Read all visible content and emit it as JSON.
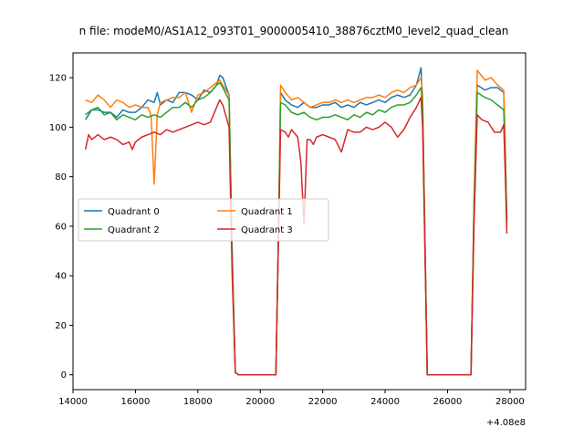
{
  "chart_data": {
    "type": "line",
    "title": "n file: modeM0/AS1A12_093T01_9000005410_38876cztM0_level2_quad_clean",
    "xlabel": "",
    "ylabel": "",
    "x_offset_label": "+4.08e8",
    "xlim": [
      14000,
      28500
    ],
    "ylim": [
      -6,
      130
    ],
    "x_ticks": [
      14000,
      16000,
      18000,
      20000,
      22000,
      24000,
      26000,
      28000
    ],
    "x_tick_labels": [
      "14000",
      "16000",
      "18000",
      "20000",
      "22000",
      "24000",
      "26000",
      "28000"
    ],
    "y_ticks": [
      0,
      20,
      40,
      60,
      80,
      100,
      120
    ],
    "y_tick_labels": [
      "0",
      "20",
      "40",
      "60",
      "80",
      "100",
      "120"
    ],
    "grid": false,
    "legend": {
      "placement": "center-left",
      "columns": 2
    },
    "series": [
      {
        "name": "Quadrant 0",
        "color": "#1f77b4",
        "points": [
          [
            14400,
            103
          ],
          [
            14600,
            107
          ],
          [
            14800,
            107
          ],
          [
            15000,
            106
          ],
          [
            15200,
            106
          ],
          [
            15400,
            104
          ],
          [
            15600,
            107
          ],
          [
            15800,
            106
          ],
          [
            16000,
            106
          ],
          [
            16200,
            108
          ],
          [
            16400,
            111
          ],
          [
            16600,
            110
          ],
          [
            16700,
            114
          ],
          [
            16800,
            109
          ],
          [
            17000,
            111
          ],
          [
            17200,
            110
          ],
          [
            17400,
            114
          ],
          [
            17600,
            114
          ],
          [
            17800,
            113
          ],
          [
            18000,
            111
          ],
          [
            18200,
            115
          ],
          [
            18400,
            114
          ],
          [
            18600,
            117
          ],
          [
            18700,
            121
          ],
          [
            18800,
            120
          ],
          [
            19000,
            113
          ],
          [
            19100,
            50
          ],
          [
            19200,
            1
          ],
          [
            19300,
            0
          ],
          [
            19600,
            0
          ],
          [
            20000,
            0
          ],
          [
            20400,
            0
          ],
          [
            20500,
            0
          ],
          [
            20600,
            70
          ],
          [
            20650,
            114
          ],
          [
            20800,
            111
          ],
          [
            21000,
            109
          ],
          [
            21200,
            108
          ],
          [
            21400,
            110
          ],
          [
            21600,
            108
          ],
          [
            21800,
            108
          ],
          [
            22000,
            109
          ],
          [
            22200,
            109
          ],
          [
            22400,
            110
          ],
          [
            22600,
            108
          ],
          [
            22800,
            109
          ],
          [
            23000,
            108
          ],
          [
            23200,
            110
          ],
          [
            23400,
            109
          ],
          [
            23600,
            110
          ],
          [
            23800,
            111
          ],
          [
            24000,
            110
          ],
          [
            24200,
            112
          ],
          [
            24400,
            113
          ],
          [
            24600,
            112
          ],
          [
            24800,
            113
          ],
          [
            25000,
            117
          ],
          [
            25150,
            124
          ],
          [
            25200,
            110
          ],
          [
            25350,
            0
          ],
          [
            25600,
            0
          ],
          [
            26000,
            0
          ],
          [
            26400,
            0
          ],
          [
            26750,
            0
          ],
          [
            26850,
            70
          ],
          [
            26950,
            117
          ],
          [
            27200,
            115
          ],
          [
            27400,
            116
          ],
          [
            27600,
            116
          ],
          [
            27800,
            114
          ],
          [
            27850,
            90
          ],
          [
            27900,
            62
          ]
        ]
      },
      {
        "name": "Quadrant 1",
        "color": "#ff7f0e",
        "points": [
          [
            14400,
            111
          ],
          [
            14600,
            110
          ],
          [
            14800,
            113
          ],
          [
            15000,
            111
          ],
          [
            15200,
            108
          ],
          [
            15400,
            111
          ],
          [
            15600,
            110
          ],
          [
            15800,
            108
          ],
          [
            16000,
            109
          ],
          [
            16200,
            108
          ],
          [
            16400,
            108
          ],
          [
            16500,
            105
          ],
          [
            16600,
            77
          ],
          [
            16700,
            105
          ],
          [
            16800,
            110
          ],
          [
            17000,
            111
          ],
          [
            17200,
            112
          ],
          [
            17400,
            112
          ],
          [
            17600,
            114
          ],
          [
            17800,
            106
          ],
          [
            18000,
            113
          ],
          [
            18200,
            114
          ],
          [
            18400,
            116
          ],
          [
            18600,
            118
          ],
          [
            18700,
            119
          ],
          [
            18800,
            117
          ],
          [
            19000,
            113
          ],
          [
            19100,
            48
          ],
          [
            19200,
            1
          ],
          [
            19300,
            0
          ],
          [
            19600,
            0
          ],
          [
            20000,
            0
          ],
          [
            20400,
            0
          ],
          [
            20500,
            0
          ],
          [
            20600,
            72
          ],
          [
            20650,
            117
          ],
          [
            20800,
            114
          ],
          [
            21000,
            111
          ],
          [
            21200,
            112
          ],
          [
            21400,
            110
          ],
          [
            21600,
            108
          ],
          [
            21800,
            109
          ],
          [
            22000,
            110
          ],
          [
            22200,
            110
          ],
          [
            22400,
            111
          ],
          [
            22600,
            110
          ],
          [
            22800,
            111
          ],
          [
            23000,
            110
          ],
          [
            23200,
            111
          ],
          [
            23400,
            112
          ],
          [
            23600,
            112
          ],
          [
            23800,
            113
          ],
          [
            24000,
            112
          ],
          [
            24200,
            114
          ],
          [
            24400,
            115
          ],
          [
            24600,
            114
          ],
          [
            24800,
            116
          ],
          [
            25000,
            117
          ],
          [
            25150,
            120
          ],
          [
            25200,
            113
          ],
          [
            25350,
            0
          ],
          [
            25600,
            0
          ],
          [
            26000,
            0
          ],
          [
            26400,
            0
          ],
          [
            26750,
            0
          ],
          [
            26850,
            72
          ],
          [
            26950,
            123
          ],
          [
            27200,
            119
          ],
          [
            27400,
            120
          ],
          [
            27600,
            117
          ],
          [
            27800,
            115
          ],
          [
            27850,
            92
          ],
          [
            27900,
            60
          ]
        ]
      },
      {
        "name": "Quadrant 2",
        "color": "#2ca02c",
        "points": [
          [
            14400,
            105
          ],
          [
            14600,
            107
          ],
          [
            14800,
            108
          ],
          [
            15000,
            105
          ],
          [
            15200,
            106
          ],
          [
            15400,
            103
          ],
          [
            15600,
            105
          ],
          [
            15800,
            104
          ],
          [
            16000,
            103
          ],
          [
            16200,
            105
          ],
          [
            16400,
            104
          ],
          [
            16600,
            105
          ],
          [
            16800,
            104
          ],
          [
            17000,
            106
          ],
          [
            17200,
            108
          ],
          [
            17400,
            108
          ],
          [
            17600,
            110
          ],
          [
            17800,
            108
          ],
          [
            18000,
            111
          ],
          [
            18200,
            112
          ],
          [
            18400,
            114
          ],
          [
            18600,
            117
          ],
          [
            18700,
            118
          ],
          [
            18800,
            116
          ],
          [
            19000,
            111
          ],
          [
            19100,
            46
          ],
          [
            19200,
            1
          ],
          [
            19300,
            0
          ],
          [
            19600,
            0
          ],
          [
            20000,
            0
          ],
          [
            20400,
            0
          ],
          [
            20500,
            0
          ],
          [
            20600,
            68
          ],
          [
            20650,
            110
          ],
          [
            20800,
            109
          ],
          [
            21000,
            106
          ],
          [
            21200,
            105
          ],
          [
            21400,
            106
          ],
          [
            21600,
            104
          ],
          [
            21800,
            103
          ],
          [
            22000,
            104
          ],
          [
            22200,
            104
          ],
          [
            22400,
            105
          ],
          [
            22600,
            104
          ],
          [
            22800,
            103
          ],
          [
            23000,
            105
          ],
          [
            23200,
            104
          ],
          [
            23400,
            106
          ],
          [
            23600,
            105
          ],
          [
            23800,
            107
          ],
          [
            24000,
            106
          ],
          [
            24200,
            108
          ],
          [
            24400,
            109
          ],
          [
            24600,
            109
          ],
          [
            24800,
            110
          ],
          [
            25000,
            113
          ],
          [
            25150,
            116
          ],
          [
            25200,
            108
          ],
          [
            25350,
            0
          ],
          [
            25600,
            0
          ],
          [
            26000,
            0
          ],
          [
            26400,
            0
          ],
          [
            26750,
            0
          ],
          [
            26850,
            68
          ],
          [
            26950,
            114
          ],
          [
            27200,
            112
          ],
          [
            27400,
            111
          ],
          [
            27600,
            109
          ],
          [
            27800,
            107
          ],
          [
            27850,
            85
          ],
          [
            27900,
            63
          ]
        ]
      },
      {
        "name": "Quadrant 3",
        "color": "#d62728",
        "points": [
          [
            14400,
            91
          ],
          [
            14500,
            97
          ],
          [
            14600,
            95
          ],
          [
            14800,
            97
          ],
          [
            15000,
            95
          ],
          [
            15200,
            96
          ],
          [
            15400,
            95
          ],
          [
            15600,
            93
          ],
          [
            15800,
            94
          ],
          [
            15900,
            91
          ],
          [
            16000,
            94
          ],
          [
            16200,
            96
          ],
          [
            16400,
            97
          ],
          [
            16600,
            98
          ],
          [
            16800,
            97
          ],
          [
            17000,
            99
          ],
          [
            17200,
            98
          ],
          [
            17400,
            99
          ],
          [
            17600,
            100
          ],
          [
            17800,
            101
          ],
          [
            18000,
            102
          ],
          [
            18200,
            101
          ],
          [
            18400,
            102
          ],
          [
            18600,
            108
          ],
          [
            18700,
            111
          ],
          [
            18800,
            109
          ],
          [
            19000,
            100
          ],
          [
            19100,
            40
          ],
          [
            19200,
            1
          ],
          [
            19300,
            0
          ],
          [
            19600,
            0
          ],
          [
            20000,
            0
          ],
          [
            20400,
            0
          ],
          [
            20500,
            0
          ],
          [
            20600,
            66
          ],
          [
            20650,
            99
          ],
          [
            20800,
            98
          ],
          [
            20900,
            96
          ],
          [
            21000,
            99
          ],
          [
            21200,
            96
          ],
          [
            21300,
            86
          ],
          [
            21400,
            61
          ],
          [
            21500,
            95
          ],
          [
            21600,
            95
          ],
          [
            21700,
            93
          ],
          [
            21800,
            96
          ],
          [
            22000,
            97
          ],
          [
            22200,
            96
          ],
          [
            22400,
            95
          ],
          [
            22600,
            90
          ],
          [
            22800,
            99
          ],
          [
            23000,
            98
          ],
          [
            23200,
            98
          ],
          [
            23400,
            100
          ],
          [
            23600,
            99
          ],
          [
            23800,
            100
          ],
          [
            24000,
            102
          ],
          [
            24200,
            100
          ],
          [
            24400,
            96
          ],
          [
            24600,
            99
          ],
          [
            24800,
            104
          ],
          [
            25000,
            108
          ],
          [
            25150,
            112
          ],
          [
            25200,
            100
          ],
          [
            25350,
            0
          ],
          [
            25600,
            0
          ],
          [
            26000,
            0
          ],
          [
            26400,
            0
          ],
          [
            26750,
            0
          ],
          [
            26850,
            62
          ],
          [
            26950,
            105
          ],
          [
            27100,
            103
          ],
          [
            27300,
            102
          ],
          [
            27500,
            98
          ],
          [
            27700,
            98
          ],
          [
            27800,
            101
          ],
          [
            27850,
            80
          ],
          [
            27900,
            57
          ]
        ]
      }
    ]
  }
}
